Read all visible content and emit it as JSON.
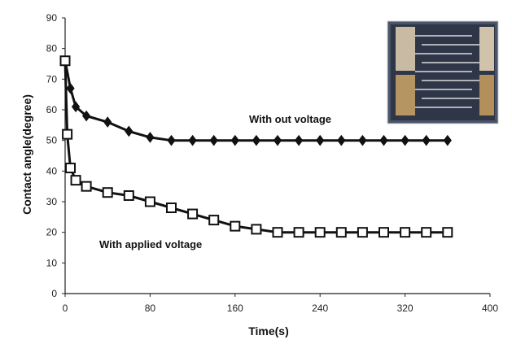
{
  "chart_data": {
    "type": "line",
    "xlabel": "Time(s)",
    "ylabel": "Contact angle(degree)",
    "xlim": [
      0,
      400
    ],
    "ylim": [
      0,
      90
    ],
    "xticks": [
      "0",
      "80",
      "160",
      "240",
      "320",
      "400"
    ],
    "yticks": [
      "0",
      "10",
      "20",
      "30",
      "40",
      "50",
      "60",
      "70",
      "80",
      "90"
    ],
    "grid": false,
    "legend": "none",
    "series": [
      {
        "name": "With out voltage",
        "marker": "filled-diamond",
        "color": "#111111",
        "x": [
          0,
          5,
          10,
          20,
          40,
          60,
          80,
          100,
          120,
          140,
          160,
          180,
          200,
          220,
          240,
          260,
          280,
          300,
          320,
          340,
          360
        ],
        "y": [
          76,
          67,
          61,
          58,
          56,
          53,
          51,
          50,
          50,
          50,
          50,
          50,
          50,
          50,
          50,
          50,
          50,
          50,
          50,
          50,
          50
        ]
      },
      {
        "name": "With applied voltage",
        "marker": "open-square",
        "color": "#111111",
        "x": [
          0,
          2,
          5,
          10,
          20,
          40,
          60,
          80,
          100,
          120,
          140,
          160,
          180,
          200,
          220,
          240,
          260,
          280,
          300,
          320,
          340,
          360
        ],
        "y": [
          76,
          52,
          41,
          37,
          35,
          33,
          32,
          30,
          28,
          26,
          24,
          22,
          21,
          20,
          20,
          20,
          20,
          20,
          20,
          20,
          20,
          20
        ]
      }
    ],
    "annotations": [
      {
        "text": "With out voltage",
        "series": 0
      },
      {
        "text": "With applied voltage",
        "series": 1
      }
    ],
    "inset": "photo of interdigitated electrode device"
  }
}
